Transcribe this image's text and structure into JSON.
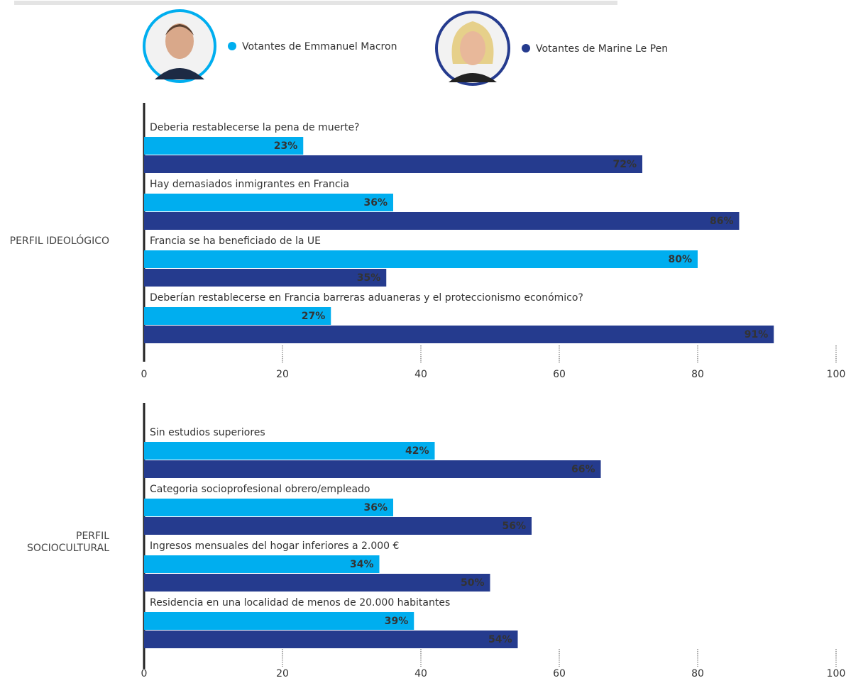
{
  "chart_data": [
    {
      "type": "bar",
      "orientation": "horizontal",
      "ylabel": "PERFIL IDEOLÓGICO",
      "categories": [
        "Deberia restablecerse la pena de muerte?",
        "Hay demasiados inmigrantes en Francia",
        "Francia se ha beneficiado de la UE",
        "Deberían restablecerse en Francia barreras aduaneras y el proteccionismo económico?"
      ],
      "series": [
        {
          "name": "Votantes de Emmanuel Macron",
          "color": "#00aeef",
          "values": [
            23,
            36,
            80,
            27
          ],
          "value_labels": [
            "23%",
            "36%",
            "80%",
            "27%"
          ]
        },
        {
          "name": "Votantes de Marine Le Pen",
          "color": "#253b8e",
          "values": [
            72,
            86,
            35,
            91
          ],
          "value_labels": [
            "72%",
            "86%",
            "35%",
            "91%"
          ]
        }
      ],
      "xlim": [
        0,
        100
      ],
      "xticks": [
        0,
        20,
        40,
        60,
        80,
        100
      ]
    },
    {
      "type": "bar",
      "orientation": "horizontal",
      "ylabel": "PERFIL SOCIOCULTURAL",
      "categories": [
        "Sin estudios superiores",
        "Categoria socioprofesional obrero/empleado",
        "Ingresos mensuales del hogar inferiores a 2.000 €",
        "Residencia en una localidad de menos de 20.000 habitantes"
      ],
      "series": [
        {
          "color": "#00aeef",
          "values": [
            42,
            36,
            34,
            39
          ],
          "value_labels": [
            "42%",
            "36%",
            "34%",
            "39%"
          ]
        },
        {
          "color": "#253b8e",
          "values": [
            66,
            56,
            50,
            54
          ],
          "value_labels": [
            "66%",
            "56%",
            "50%",
            "54%"
          ]
        }
      ],
      "xlim": [
        0,
        100
      ],
      "xticks": [
        0,
        20,
        40,
        60,
        80,
        100
      ]
    }
  ]
}
